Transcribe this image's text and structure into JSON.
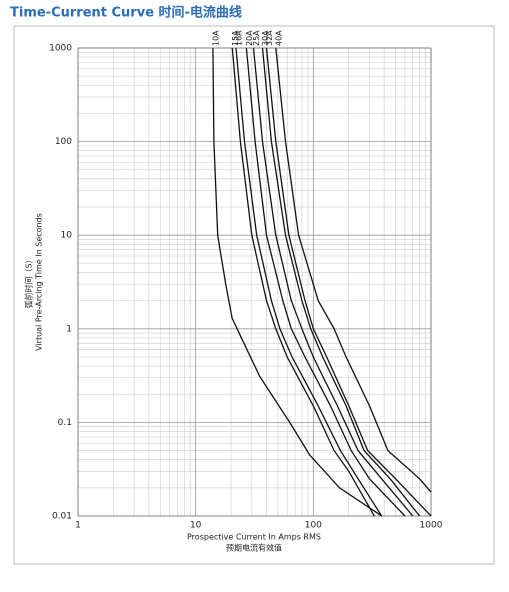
{
  "chart_data": {
    "type": "line",
    "title": "Time-Current Curve 时间-电流曲线",
    "xlabel": "Prospective Current In Amps RMS",
    "xlabel_zh": "预期电流有效值",
    "ylabel": "Virtual Pre-Arcing Time In Seconds",
    "ylabel_zh": "弧前时间（S）",
    "xscale": "log",
    "yscale": "log",
    "xlim": [
      1,
      1000
    ],
    "ylim": [
      0.01,
      1000
    ],
    "xticks": [
      1,
      10,
      100,
      1000
    ],
    "yticks": [
      0.01,
      0.1,
      1,
      10,
      100,
      1000
    ],
    "grid": true,
    "minor_grid": true,
    "series": [
      {
        "name": "10A",
        "color": "#111111",
        "x": [
          14,
          14.3,
          15.4,
          18,
          20.4,
          22.5,
          35,
          63,
          93,
          167,
          381
        ],
        "values": [
          1000,
          100,
          10,
          3,
          1.3,
          1,
          0.31,
          0.1,
          0.045,
          0.02,
          0.01
        ]
      },
      {
        "name": "15A",
        "color": "#111111",
        "x": [
          20.5,
          24,
          30,
          40,
          48,
          60,
          100,
          150,
          200,
          330
        ],
        "values": [
          1000,
          100,
          10,
          2,
          1,
          0.5,
          0.15,
          0.05,
          0.03,
          0.01
        ]
      },
      {
        "name": "16A",
        "color": "#111111",
        "x": [
          22,
          26,
          33,
          44,
          52,
          66,
          110,
          170,
          240,
          380
        ],
        "values": [
          1000,
          100,
          10,
          2,
          1,
          0.5,
          0.15,
          0.05,
          0.025,
          0.01
        ]
      },
      {
        "name": "20A",
        "color": "#111111",
        "x": [
          27,
          32,
          40,
          55,
          65,
          85,
          140,
          210,
          300,
          600
        ],
        "values": [
          1000,
          100,
          10,
          2,
          1,
          0.5,
          0.15,
          0.05,
          0.025,
          0.01
        ]
      },
      {
        "name": "25A",
        "color": "#111111",
        "x": [
          31,
          37,
          48,
          65,
          80,
          100,
          160,
          240,
          380,
          700
        ],
        "values": [
          1000,
          100,
          10,
          2,
          1,
          0.5,
          0.15,
          0.05,
          0.025,
          0.01
        ]
      },
      {
        "name": "30A",
        "color": "#111111",
        "x": [
          37,
          44,
          58,
          80,
          95,
          120,
          190,
          270,
          450,
          800
        ],
        "values": [
          1000,
          100,
          10,
          2,
          1,
          0.5,
          0.15,
          0.05,
          0.025,
          0.01
        ]
      },
      {
        "name": "32A",
        "color": "#111111",
        "x": [
          40,
          48,
          62,
          85,
          100,
          130,
          200,
          290,
          500,
          1000
        ],
        "values": [
          1000,
          100,
          10,
          2,
          1,
          0.5,
          0.15,
          0.05,
          0.025,
          0.01
        ]
      },
      {
        "name": "40A",
        "color": "#111111",
        "x": [
          48,
          58,
          75,
          110,
          150,
          190,
          300,
          430,
          800,
          1000
        ],
        "values": [
          1000,
          100,
          10,
          2,
          1,
          0.5,
          0.15,
          0.05,
          0.025,
          0.018
        ]
      }
    ]
  }
}
